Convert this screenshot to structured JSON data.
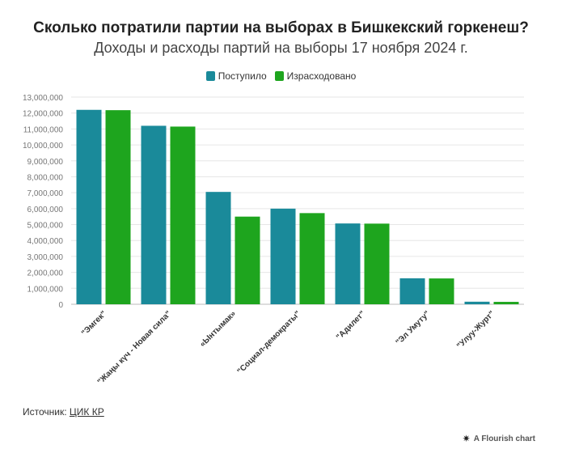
{
  "header": {
    "title": "Сколько потратили партии на выборах в Бишкекский горкенеш?",
    "subtitle": "Доходы и расходы партий на выборы 17 ноября 2024 г."
  },
  "footer": {
    "source_label": "Источник:",
    "source_link": "ЦИК КР",
    "credit": "A Flourish chart",
    "credit_icon": "flourish-asterisk-icon"
  },
  "colors": {
    "received": "#1a8a9a",
    "spent": "#1ea51e"
  },
  "chart_data": {
    "type": "bar",
    "title": "Сколько потратили партии на выборах в Бишкекский горкенеш?",
    "subtitle": "Доходы и расходы партий на выборы 17 ноября 2024 г.",
    "categories": [
      "\"Эмгек\"",
      "\"Жаңы күч - Новая сила\"",
      "«Ынтымак»",
      "\"Социал-демократы\"",
      "\"Адилет\"",
      "\"Эл Умуту\"",
      "\"Улуу-Журт\""
    ],
    "series": [
      {
        "name": "Поступило",
        "values": [
          12200000,
          11200000,
          7050000,
          6000000,
          5070000,
          1630000,
          160000
        ]
      },
      {
        "name": "Израсходовано",
        "values": [
          12180000,
          11150000,
          5500000,
          5720000,
          5060000,
          1620000,
          150000
        ]
      }
    ],
    "y_ticks": [
      "0",
      "1,000,000",
      "2,000,000",
      "3,000,000",
      "4,000,000",
      "5,000,000",
      "6,000,000",
      "7,000,000",
      "8,000,000",
      "9,000,000",
      "10,000,000",
      "11,000,000",
      "12,000,000",
      "13,000,000"
    ],
    "ylim": [
      0,
      13000000
    ],
    "grid": true,
    "legend_position": "top-center"
  }
}
